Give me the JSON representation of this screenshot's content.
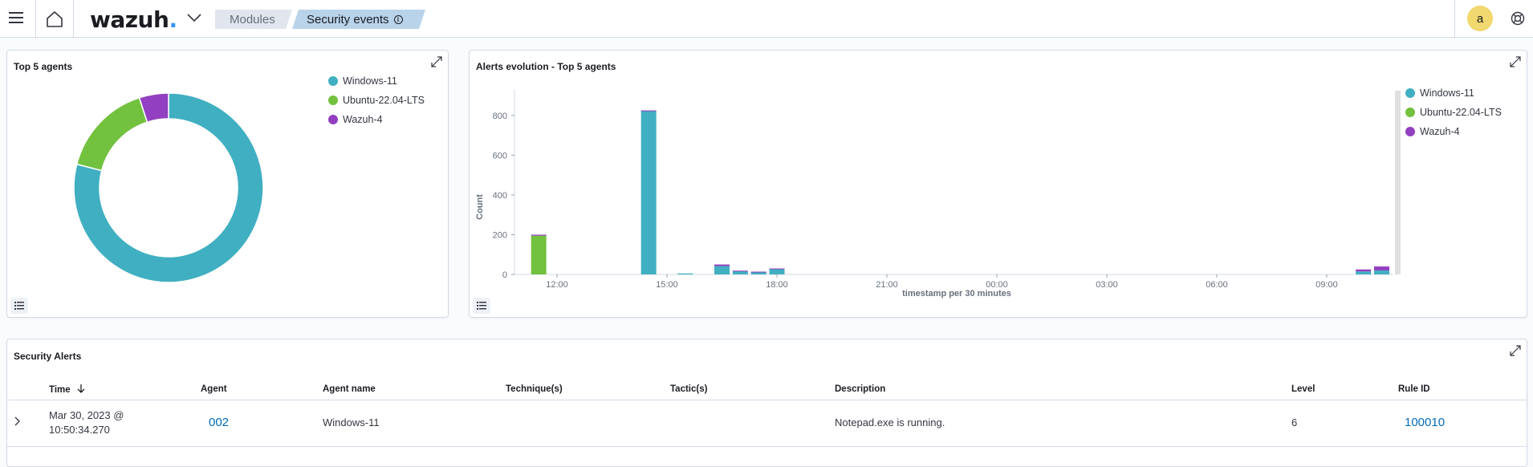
{
  "header": {
    "logo_text": "wazuh",
    "logo_dot": ".",
    "breadcrumbs": [
      "Modules",
      "Security events"
    ],
    "user_initial": "a",
    "icons": [
      "menu-icon",
      "home-icon",
      "chevron-down-icon",
      "info-icon",
      "help-icon"
    ]
  },
  "top_agents": {
    "title": "Top 5 agents",
    "legend": [
      {
        "name": "Windows-11",
        "color": "#40afc1"
      },
      {
        "name": "Ubuntu-22.04-LTS",
        "color": "#72c13f"
      },
      {
        "name": "Wazuh-4",
        "color": "#9240c1"
      }
    ]
  },
  "alerts_evolution": {
    "title": "Alerts evolution - Top 5 agents",
    "legend": [
      {
        "name": "Windows-11",
        "color": "#40afc1"
      },
      {
        "name": "Ubuntu-22.04-LTS",
        "color": "#72c13f"
      },
      {
        "name": "Wazuh-4",
        "color": "#9240c1"
      }
    ]
  },
  "chart_data": [
    {
      "type": "pie",
      "title": "Top 5 agents",
      "donut": true,
      "slices": [
        {
          "label": "Windows-11",
          "value": 79,
          "color": "#40afc1"
        },
        {
          "label": "Ubuntu-22.04-LTS",
          "value": 16,
          "color": "#72c13f"
        },
        {
          "label": "Wazuh-4",
          "value": 5,
          "color": "#9240c1"
        }
      ],
      "legend_position": "top-right"
    },
    {
      "type": "bar",
      "stacked": true,
      "title": "Alerts evolution - Top 5 agents",
      "xlabel": "timestamp per 30 minutes",
      "ylabel": "Count",
      "ylim": [
        0,
        900
      ],
      "yticks": [
        0,
        200,
        400,
        600,
        800
      ],
      "xticks": [
        "12:00",
        "15:00",
        "18:00",
        "21:00",
        "00:00",
        "03:00",
        "06:00",
        "09:00"
      ],
      "grid": false,
      "legend_position": "right",
      "bars": [
        {
          "x_hours": 11.5,
          "Windows-11": 0,
          "Ubuntu-22.04-LTS": 195,
          "Wazuh-4": 5
        },
        {
          "x_hours": 14.5,
          "Windows-11": 822,
          "Ubuntu-22.04-LTS": 0,
          "Wazuh-4": 3
        },
        {
          "x_hours": 15.5,
          "Windows-11": 5,
          "Ubuntu-22.04-LTS": 0,
          "Wazuh-4": 0
        },
        {
          "x_hours": 16.5,
          "Windows-11": 42,
          "Ubuntu-22.04-LTS": 0,
          "Wazuh-4": 8
        },
        {
          "x_hours": 17.0,
          "Windows-11": 16,
          "Ubuntu-22.04-LTS": 0,
          "Wazuh-4": 3
        },
        {
          "x_hours": 17.5,
          "Windows-11": 11,
          "Ubuntu-22.04-LTS": 0,
          "Wazuh-4": 3
        },
        {
          "x_hours": 18.0,
          "Windows-11": 27,
          "Ubuntu-22.04-LTS": 0,
          "Wazuh-4": 3
        },
        {
          "x_hours": 34.0,
          "Windows-11": 15,
          "Ubuntu-22.04-LTS": 0,
          "Wazuh-4": 10
        },
        {
          "x_hours": 34.5,
          "Windows-11": 20,
          "Ubuntu-22.04-LTS": 0,
          "Wazuh-4": 20
        }
      ],
      "series": [
        {
          "name": "Windows-11",
          "color": "#40afc1"
        },
        {
          "name": "Ubuntu-22.04-LTS",
          "color": "#72c13f"
        },
        {
          "name": "Wazuh-4",
          "color": "#9240c1"
        }
      ]
    }
  ],
  "alerts_table": {
    "title": "Security Alerts",
    "columns": [
      "Time",
      "Agent",
      "Agent name",
      "Technique(s)",
      "Tactic(s)",
      "Description",
      "Level",
      "Rule ID"
    ],
    "rows": [
      {
        "time_line1": "Mar 30, 2023 @",
        "time_line2": "10:50:34.270",
        "agent": "002",
        "agent_name": "Windows-11",
        "techniques": "",
        "tactics": "",
        "description": "Notepad.exe is running.",
        "level": "6",
        "rule_id": "100010"
      }
    ]
  }
}
